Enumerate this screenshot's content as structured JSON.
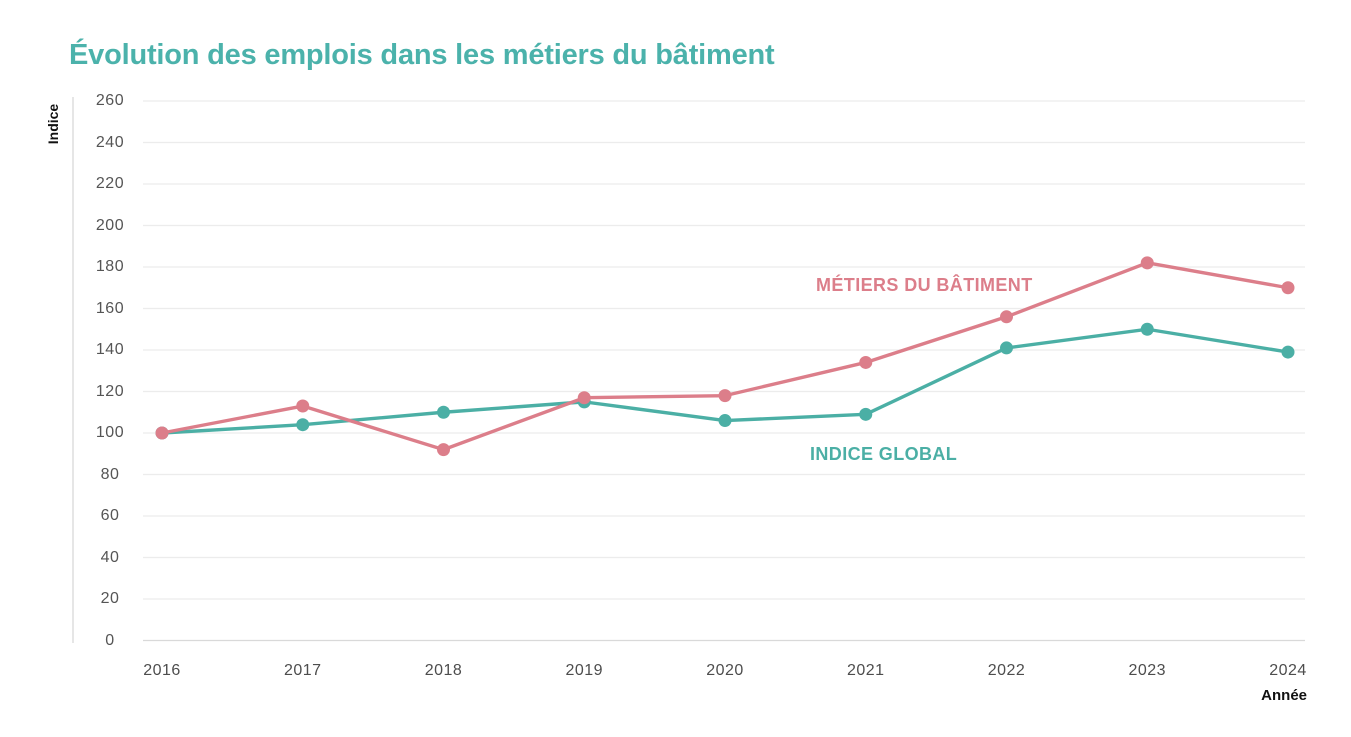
{
  "title": "Évolution des emplois dans les métiers du bâtiment",
  "axis_labels": {
    "y": "Indice",
    "x": "Année"
  },
  "colors": {
    "title": "#4BB2AB",
    "batiment_series": "#DC7E8A",
    "global_series": "#4BAFA5",
    "grid": "#ECECEC",
    "axis": "#D9D9D9",
    "y_tick_text": "#555555",
    "x_tick_text": "#4d4d4d",
    "axis_title_text": "#111111"
  },
  "chart_data": {
    "type": "line",
    "title": "Évolution des emplois dans les métiers du bâtiment",
    "xlabel": "Année",
    "ylabel": "Indice",
    "categories": [
      "2016",
      "2017",
      "2018",
      "2019",
      "2020",
      "2021",
      "2022",
      "2023",
      "2024"
    ],
    "series": [
      {
        "name": "MÉTIERS DU BÂTIMENT",
        "color": "#DC7E8A",
        "values": [
          100,
          113,
          92,
          117,
          118,
          134,
          156,
          182,
          170
        ]
      },
      {
        "name": "INDICE GLOBAL",
        "color": "#4BAFA5",
        "values": [
          100,
          104,
          110,
          115,
          106,
          109,
          141,
          150,
          139
        ]
      }
    ],
    "ylim": [
      0,
      260
    ],
    "yticks": [
      0,
      20,
      40,
      60,
      80,
      100,
      120,
      140,
      160,
      180,
      200,
      220,
      240,
      260
    ],
    "grid": true,
    "legend_position": "inline-annotations"
  }
}
